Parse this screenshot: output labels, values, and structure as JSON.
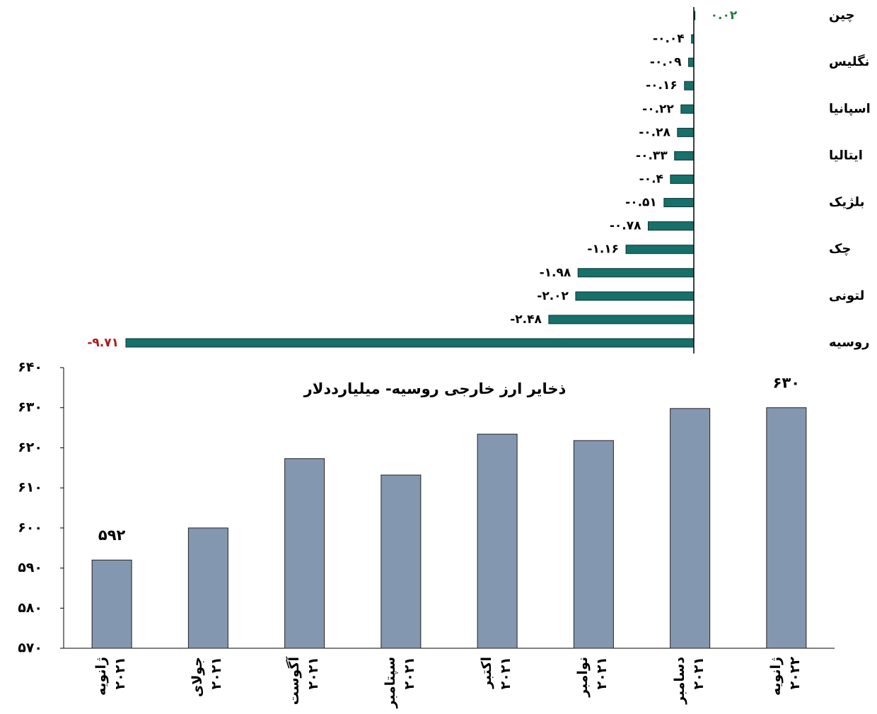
{
  "chart_data": [
    {
      "type": "hbar",
      "categories": [
        "چین",
        null,
        "نگلیس",
        null,
        "اسپانیا",
        null,
        "ایتالیا",
        null,
        "بلژیک",
        null,
        "چک",
        null,
        "لتونی",
        null,
        "روسیه"
      ],
      "values": [
        0.02,
        -0.04,
        -0.09,
        -0.16,
        -0.22,
        -0.28,
        -0.33,
        -0.4,
        -0.51,
        -0.78,
        -1.16,
        -1.98,
        -2.02,
        -2.48,
        -9.71
      ],
      "value_labels": [
        "۰.۰۲",
        "-۰.۰۴",
        "-۰.۰۹",
        "-۰.۱۶",
        "-۰.۲۲",
        "-۰.۲۸",
        "-۰.۳۳",
        "-۰.۴",
        "-۰.۵۱",
        "-۰.۷۸",
        "-۱.۱۶",
        "-۱.۹۸",
        "-۲.۰۲",
        "-۲.۴۸",
        "-۹.۷۱"
      ],
      "label_colors": [
        "#1e7b3c",
        "#000000",
        "#000000",
        "#000000",
        "#000000",
        "#000000",
        "#000000",
        "#000000",
        "#000000",
        "#000000",
        "#000000",
        "#000000",
        "#000000",
        "#000000",
        "#b01818"
      ],
      "color": "#17706a"
    },
    {
      "type": "bar",
      "title": "ذخایر ارز خارجی روسیه- میلیارددلار",
      "categories": [
        "ژانویه\n۲۰۲۱",
        "جولای\n۲۰۲۱",
        "آگوست\n۲۰۲۱",
        "سپتامبر\n۲۰۲۱",
        "اکتبر\n۲۰۲۱",
        "نوامبر\n۲۰۲۱",
        "دسامبر\n۲۰۲۱",
        "ژانویه\n۲۰۲۲"
      ],
      "values": [
        592,
        600,
        617.3,
        613.2,
        623.4,
        621.8,
        629.8,
        630
      ],
      "value_labels": [
        "۵۹۲",
        null,
        null,
        null,
        null,
        null,
        null,
        "۶۳۰"
      ],
      "color": "#8497b0",
      "ylim": [
        570,
        640
      ],
      "yticks": [
        {
          "value": 570,
          "label": "۵۷۰"
        },
        {
          "value": 580,
          "label": "۵۸۰"
        },
        {
          "value": 590,
          "label": "۵۹۰"
        },
        {
          "value": 600,
          "label": "۶۰۰"
        },
        {
          "value": 610,
          "label": "۶۱۰"
        },
        {
          "value": 620,
          "label": "۶۲۰"
        },
        {
          "value": 630,
          "label": "۶۳۰"
        },
        {
          "value": 640,
          "label": "۶۴۰"
        }
      ]
    }
  ]
}
